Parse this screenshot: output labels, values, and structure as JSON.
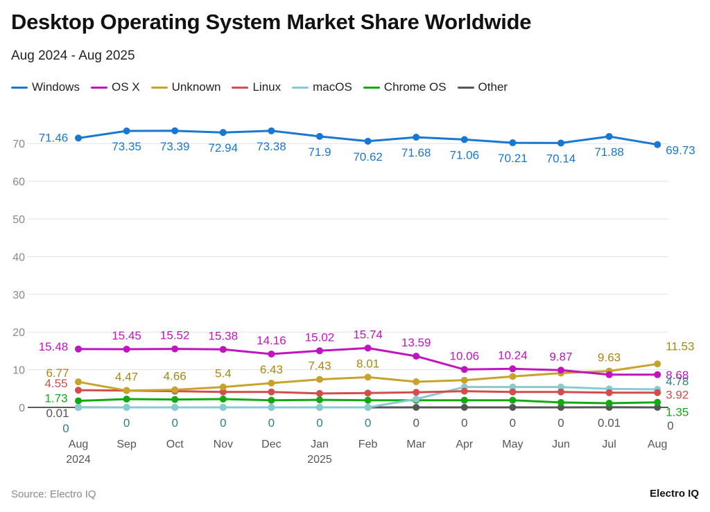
{
  "title": "Desktop Operating System Market Share Worldwide",
  "subtitle": "Aug 2024 - Aug 2025",
  "source": "Source: Electro IQ",
  "brand": "Electro IQ",
  "chart_data": {
    "type": "line",
    "categories": [
      [
        "Aug",
        "2024"
      ],
      [
        "Sep"
      ],
      [
        "Oct"
      ],
      [
        "Nov"
      ],
      [
        "Dec"
      ],
      [
        "Jan",
        "2025"
      ],
      [
        "Feb"
      ],
      [
        "Mar"
      ],
      [
        "Apr"
      ],
      [
        "May"
      ],
      [
        "Jun"
      ],
      [
        "Jul"
      ],
      [
        "Aug"
      ]
    ],
    "ylim": [
      0,
      70
    ],
    "yticks": [
      0,
      10,
      20,
      30,
      40,
      50,
      60,
      70
    ],
    "grid": true,
    "legend_position": "top-left",
    "series": [
      {
        "name": "Windows",
        "color": "#1777d2",
        "values": [
          71.46,
          73.35,
          73.39,
          72.94,
          73.38,
          71.9,
          70.62,
          71.68,
          71.06,
          70.21,
          70.14,
          71.88,
          69.73
        ],
        "labels": [
          "71.46",
          "73.35",
          "73.39",
          "72.94",
          "73.38",
          "71.9",
          "70.62",
          "71.68",
          "71.06",
          "70.21",
          "70.14",
          "71.88",
          "69.73"
        ]
      },
      {
        "name": "OS X",
        "color": "#c114c1",
        "values": [
          15.48,
          15.45,
          15.52,
          15.38,
          14.16,
          15.02,
          15.74,
          13.59,
          10.06,
          10.24,
          9.87,
          8.68,
          8.68
        ],
        "labels": [
          "15.48",
          "15.45",
          "15.52",
          "15.38",
          "14.16",
          "15.02",
          "15.74",
          "13.59",
          "10.06",
          "10.24",
          "9.87",
          "",
          "8.68"
        ]
      },
      {
        "name": "Unknown",
        "color": "#c8a32b",
        "values": [
          6.77,
          4.47,
          4.66,
          5.4,
          6.43,
          7.43,
          8.01,
          6.8,
          7.2,
          8.2,
          9.1,
          9.63,
          11.53
        ],
        "labels": [
          "6.77",
          "4.47",
          "4.66",
          "5.4",
          "6.43",
          "7.43",
          "8.01",
          "",
          "",
          "",
          "",
          "9.63",
          "11.53"
        ]
      },
      {
        "name": "Linux",
        "color": "#d24d4d",
        "values": [
          4.55,
          4.47,
          4.3,
          4.1,
          4.1,
          3.7,
          3.8,
          4.0,
          4.3,
          4.1,
          4.1,
          3.9,
          3.92
        ],
        "labels": [
          "4.55",
          "",
          "",
          "",
          "",
          "",
          "",
          "",
          "",
          "",
          "",
          "",
          "3.92"
        ]
      },
      {
        "name": "macOS",
        "color": "#86cbd0",
        "values": [
          0,
          0,
          0,
          0,
          0,
          0,
          0,
          2.2,
          5.4,
          5.4,
          5.4,
          4.9,
          4.78
        ],
        "labels": [
          "0",
          "0",
          "0",
          "0",
          "0",
          "0",
          "0",
          "",
          "",
          "",
          "",
          "",
          "4.78"
        ]
      },
      {
        "name": "Chrome OS",
        "color": "#11aa11",
        "values": [
          1.73,
          2.2,
          2.1,
          2.2,
          1.9,
          2.0,
          1.9,
          1.9,
          1.9,
          1.9,
          1.3,
          1.1,
          1.35
        ],
        "labels": [
          "1.73",
          "",
          "",
          "",
          "",
          "",
          "",
          "",
          "",
          "",
          "",
          "",
          "1.35"
        ]
      },
      {
        "name": "Other",
        "color": "#555555",
        "values": [
          0.01,
          0,
          0,
          0,
          0,
          0,
          0,
          0,
          0,
          0,
          0,
          0.01,
          0
        ],
        "labels": [
          "0.01",
          "",
          "",
          "",
          "",
          "",
          "",
          "0",
          "0",
          "0",
          "0",
          "0.01",
          "0"
        ]
      }
    ]
  }
}
